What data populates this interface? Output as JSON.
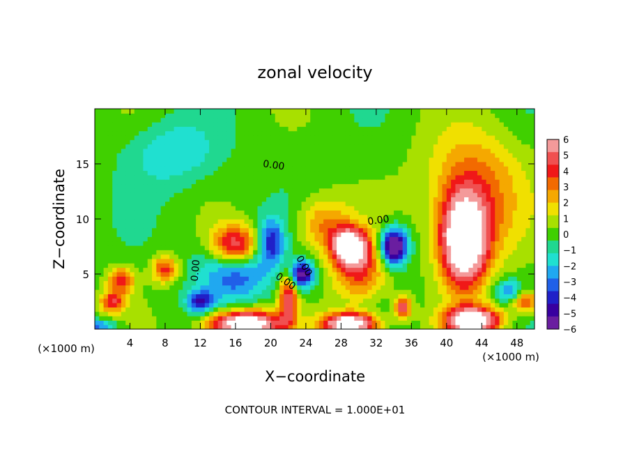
{
  "chart_data": {
    "type": "heatmap",
    "title": "zonal velocity",
    "xlabel": "X−coordinate",
    "ylabel": "Z−coordinate",
    "x_unit_label": "(×1000 m)",
    "y_unit_label": "(×1000 m)",
    "footer": "CONTOUR INTERVAL = 1.000E+01",
    "xlim": [
      0,
      50
    ],
    "ylim": [
      0,
      20
    ],
    "x_ticks": [
      4,
      8,
      12,
      16,
      20,
      24,
      28,
      32,
      36,
      40,
      44,
      48
    ],
    "y_ticks": [
      5,
      10,
      15
    ],
    "colorbar": {
      "range": [
        -6,
        6
      ],
      "ticks": [
        6,
        5,
        4,
        3,
        2,
        1,
        0,
        -1,
        -2,
        -3,
        -4,
        -5,
        -6
      ],
      "colors": [
        "#f49a9a",
        "#f05050",
        "#f01818",
        "#f26a00",
        "#f5a800",
        "#f0e000",
        "#a8e000",
        "#40d000",
        "#20d890",
        "#20e0d0",
        "#20a8f0",
        "#2060e8",
        "#2020c8",
        "#3800a0",
        "#6a1ea0"
      ]
    },
    "contour_labels": [
      "0.00",
      "0.00",
      "0.00",
      "0.00",
      "0.00"
    ],
    "features": [
      {
        "x": 16,
        "z": 7.5,
        "value": 8,
        "rx": 3.0,
        "rz": 2.0
      },
      {
        "x": 16,
        "z": 6.0,
        "value": -5,
        "rx": 4.0,
        "rz": 3.0
      },
      {
        "x": 23.5,
        "z": 5.0,
        "value": -6,
        "rx": 1.5,
        "rz": 1.2
      },
      {
        "x": 29,
        "z": 7.5,
        "value": 8,
        "rx": 1.8,
        "rz": 1.5
      },
      {
        "x": 30,
        "z": 5.5,
        "value": 4,
        "rx": 3.0,
        "rz": 3.0
      },
      {
        "x": 34,
        "z": 7.5,
        "value": -8,
        "rx": 1.5,
        "rz": 1.6
      },
      {
        "x": 42,
        "z": 8.0,
        "value": 9,
        "rx": 2.5,
        "rz": 4.0
      },
      {
        "x": 43,
        "z": 10.5,
        "value": 3,
        "rx": 5.0,
        "rz": 5.0
      },
      {
        "x": 43,
        "z": 15.0,
        "value": 1.5,
        "rx": 6.0,
        "rz": 4.0
      },
      {
        "x": 9,
        "z": 16,
        "value": -2,
        "rx": 5.0,
        "rz": 3.0
      },
      {
        "x": 3,
        "z": 4.5,
        "value": 4,
        "rx": 1.5,
        "rz": 1.2
      },
      {
        "x": 8,
        "z": 5.5,
        "value": 4,
        "rx": 1.5,
        "rz": 1.2
      },
      {
        "x": 2,
        "z": 2.5,
        "value": 4,
        "rx": 1.5,
        "rz": 1.0
      },
      {
        "x": 12,
        "z": 2.5,
        "value": -4,
        "rx": 1.5,
        "rz": 1.0
      },
      {
        "x": 17,
        "z": 0.5,
        "value": 9,
        "rx": 4.0,
        "rz": 1.2
      },
      {
        "x": 22,
        "z": 3.0,
        "value": 5,
        "rx": 1.0,
        "rz": 2.5
      },
      {
        "x": 29,
        "z": 0.5,
        "value": 9,
        "rx": 3.0,
        "rz": 1.0
      },
      {
        "x": 43,
        "z": 0.8,
        "value": 9,
        "rx": 3.0,
        "rz": 1.2
      },
      {
        "x": 47,
        "z": 3.5,
        "value": -3,
        "rx": 1.5,
        "rz": 1.0
      },
      {
        "x": 49,
        "z": 2.5,
        "value": 4,
        "rx": 1.5,
        "rz": 1.0
      },
      {
        "x": 35,
        "z": 2.0,
        "value": 5,
        "rx": 1.0,
        "rz": 1.0
      },
      {
        "x": 20,
        "z": 8.0,
        "value": -4,
        "rx": 1.5,
        "rz": 2.0
      },
      {
        "x": 26,
        "z": 9.5,
        "value": 3,
        "rx": 3.0,
        "rz": 2.5
      },
      {
        "x": 0.5,
        "z": 0.3,
        "value": -3,
        "rx": 2.0,
        "rz": 0.6
      }
    ]
  }
}
